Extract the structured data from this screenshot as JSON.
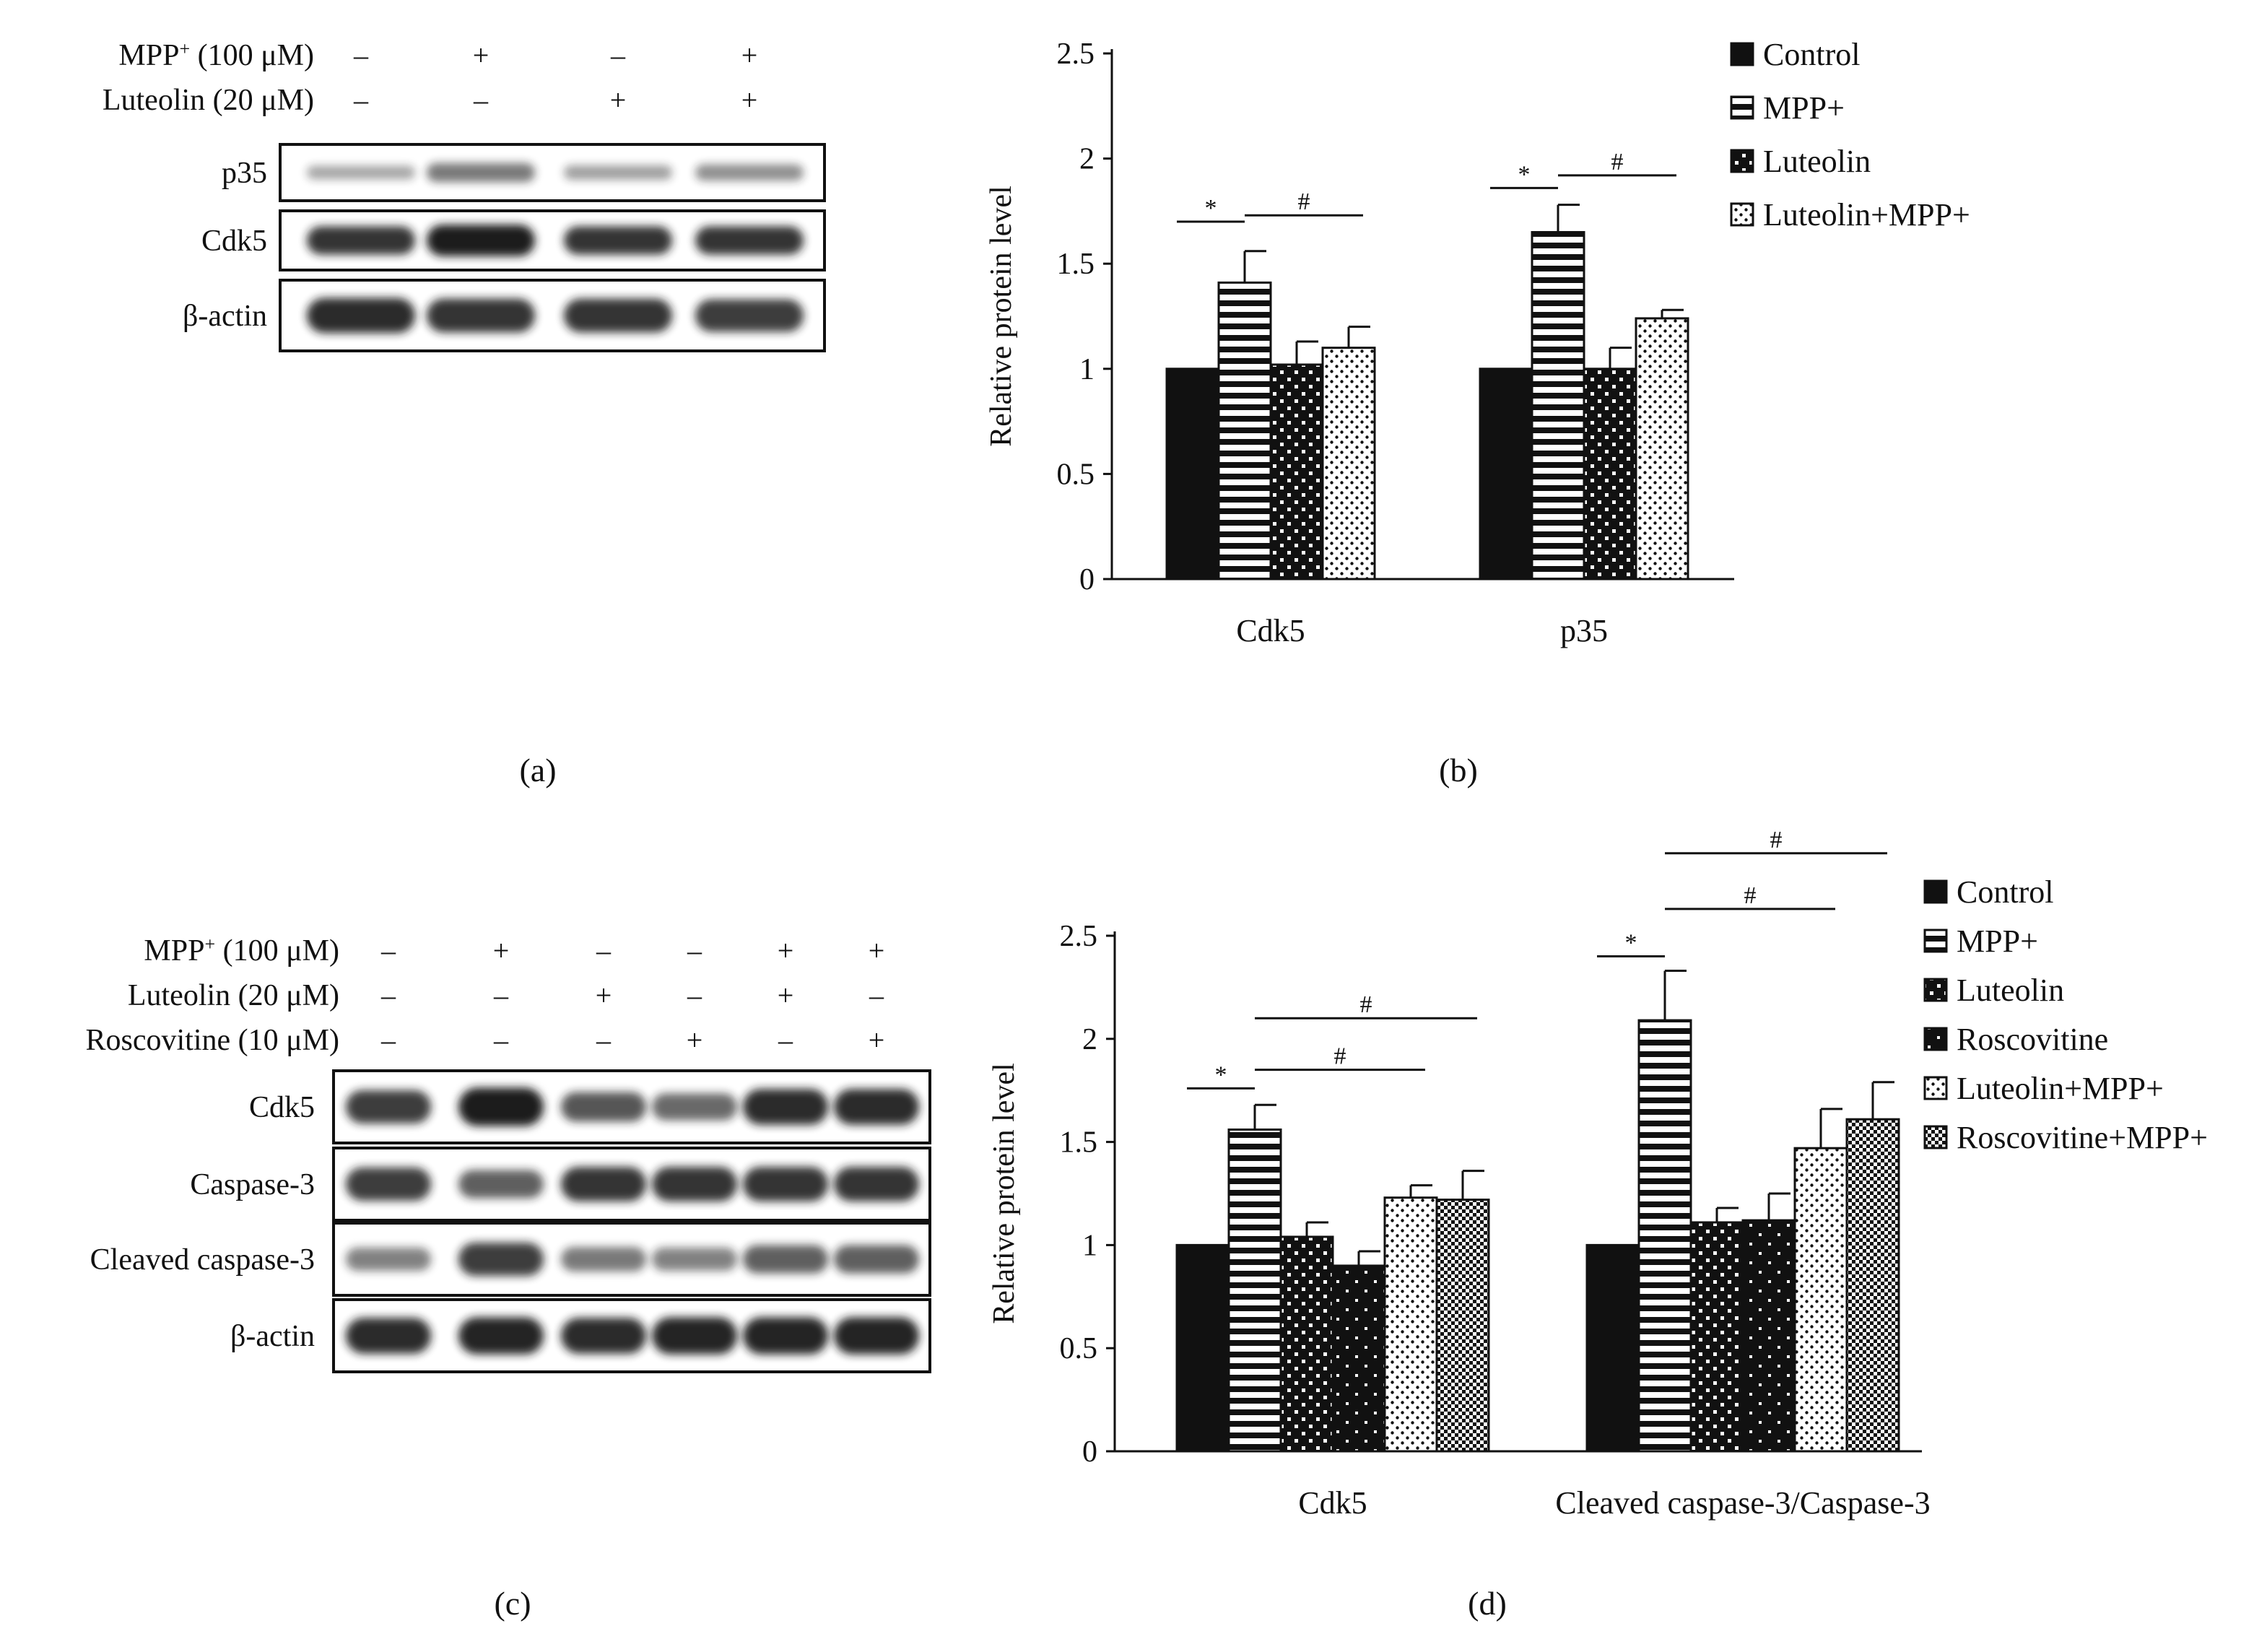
{
  "panels": {
    "a": {
      "label": "(a)",
      "conditions": [
        {
          "name": "MPP",
          "sup": "+",
          "rest": " (100 μM)",
          "signs": [
            "–",
            "+",
            "–",
            "+"
          ]
        },
        {
          "name": "Luteolin (20 μM)",
          "sup": "",
          "rest": "",
          "signs": [
            "–",
            "–",
            "+",
            "+"
          ]
        }
      ],
      "blots": [
        {
          "label": "p35",
          "intensity": [
            0.18,
            0.45,
            0.22,
            0.32
          ]
        },
        {
          "label": "Cdk5",
          "intensity": [
            0.85,
            1.0,
            0.85,
            0.85
          ]
        },
        {
          "label": "β-actin",
          "intensity": [
            0.9,
            0.85,
            0.85,
            0.8
          ]
        }
      ]
    },
    "b": {
      "label": "(b)"
    },
    "c": {
      "label": "(c)",
      "conditions": [
        {
          "name": "MPP",
          "sup": "+",
          "rest": " (100 μM)",
          "signs": [
            "–",
            "+",
            "–",
            "–",
            "+",
            "+"
          ]
        },
        {
          "name": "Luteolin (20 μM)",
          "sup": "",
          "rest": "",
          "signs": [
            "–",
            "–",
            "+",
            "–",
            "+",
            "–"
          ]
        },
        {
          "name": "Roscovitine (10 μM)",
          "sup": "",
          "rest": "",
          "signs": [
            "–",
            "–",
            "–",
            "+",
            "–",
            "+"
          ]
        }
      ],
      "blots": [
        {
          "label": "Cdk5",
          "intensity": [
            0.8,
            1.0,
            0.65,
            0.55,
            0.9,
            0.9
          ]
        },
        {
          "label": "Caspase-3",
          "intensity": [
            0.8,
            0.6,
            0.85,
            0.85,
            0.85,
            0.85
          ]
        },
        {
          "label": "Cleaved caspase-3",
          "intensity": [
            0.4,
            0.8,
            0.45,
            0.4,
            0.6,
            0.6
          ]
        },
        {
          "label": "β-actin",
          "intensity": [
            0.9,
            0.95,
            0.9,
            0.95,
            0.95,
            0.95
          ]
        }
      ]
    },
    "d": {
      "label": "(d)"
    }
  },
  "chart_data": [
    {
      "panel": "b",
      "type": "bar",
      "ylabel": "Relative protein level",
      "xlabel": "",
      "ylim": [
        0,
        2.5
      ],
      "yticks": [
        "0",
        "0.5",
        "1",
        "1.5",
        "2",
        "2.5"
      ],
      "categories": [
        "Cdk5",
        "p35"
      ],
      "legend_position": "top-right",
      "series": [
        {
          "name": "Control",
          "pattern": "solid",
          "values": [
            1.0,
            1.0
          ],
          "errors": [
            0,
            0
          ]
        },
        {
          "name": "MPP+",
          "pattern": "hstripes",
          "values": [
            1.41,
            1.65
          ],
          "errors": [
            0.15,
            0.13
          ]
        },
        {
          "name": "Luteolin",
          "pattern": "checker",
          "values": [
            1.02,
            1.0
          ],
          "errors": [
            0.11,
            0.1
          ]
        },
        {
          "name": "Luteolin+MPP+",
          "pattern": "dots",
          "values": [
            1.1,
            1.24
          ],
          "errors": [
            0.1,
            0.04
          ]
        }
      ],
      "annotations": [
        {
          "category": 0,
          "from": 0,
          "to": 1,
          "symbol": "*",
          "level": 1.7
        },
        {
          "category": 0,
          "from": 1,
          "to": 3,
          "symbol": "#",
          "level": 1.73
        },
        {
          "category": 1,
          "from": 0,
          "to": 1,
          "symbol": "*",
          "level": 1.86
        },
        {
          "category": 1,
          "from": 1,
          "to": 3,
          "symbol": "#",
          "level": 1.92
        }
      ]
    },
    {
      "panel": "d",
      "type": "bar",
      "ylabel": "Relative protein level",
      "xlabel": "",
      "ylim": [
        0,
        2.5
      ],
      "yticks": [
        "0",
        "0.5",
        "1",
        "1.5",
        "2",
        "2.5"
      ],
      "categories": [
        "Cdk5",
        "Cleaved caspase-3/Caspase-3"
      ],
      "legend_position": "top-right",
      "series": [
        {
          "name": "Control",
          "pattern": "solid",
          "values": [
            1.0,
            1.0
          ],
          "errors": [
            0,
            0
          ]
        },
        {
          "name": "MPP+",
          "pattern": "hstripes",
          "values": [
            1.56,
            2.09
          ],
          "errors": [
            0.12,
            0.24
          ]
        },
        {
          "name": "Luteolin",
          "pattern": "checker",
          "values": [
            1.04,
            1.11
          ],
          "errors": [
            0.07,
            0.07
          ]
        },
        {
          "name": "Roscovitine",
          "pattern": "sparsedots",
          "values": [
            0.9,
            1.12
          ],
          "errors": [
            0.07,
            0.13
          ]
        },
        {
          "name": "Luteolin+MPP+",
          "pattern": "dots",
          "values": [
            1.23,
            1.47
          ],
          "errors": [
            0.06,
            0.19
          ]
        },
        {
          "name": "Roscovitine+MPP+",
          "pattern": "crosshatch",
          "values": [
            1.22,
            1.61
          ],
          "errors": [
            0.14,
            0.18
          ]
        }
      ],
      "annotations": [
        {
          "category": 0,
          "from": 0,
          "to": 1,
          "symbol": "*",
          "level": 1.76
        },
        {
          "category": 0,
          "from": 1,
          "to": 4,
          "symbol": "#",
          "level": 1.85
        },
        {
          "category": 0,
          "from": 1,
          "to": 5,
          "symbol": "#",
          "level": 2.1
        },
        {
          "category": 1,
          "from": 0,
          "to": 1,
          "symbol": "*",
          "level": 2.4
        },
        {
          "category": 1,
          "from": 1,
          "to": 4,
          "symbol": "#",
          "level": 2.63
        },
        {
          "category": 1,
          "from": 1,
          "to": 5,
          "symbol": "#",
          "level": 2.9
        }
      ]
    }
  ]
}
